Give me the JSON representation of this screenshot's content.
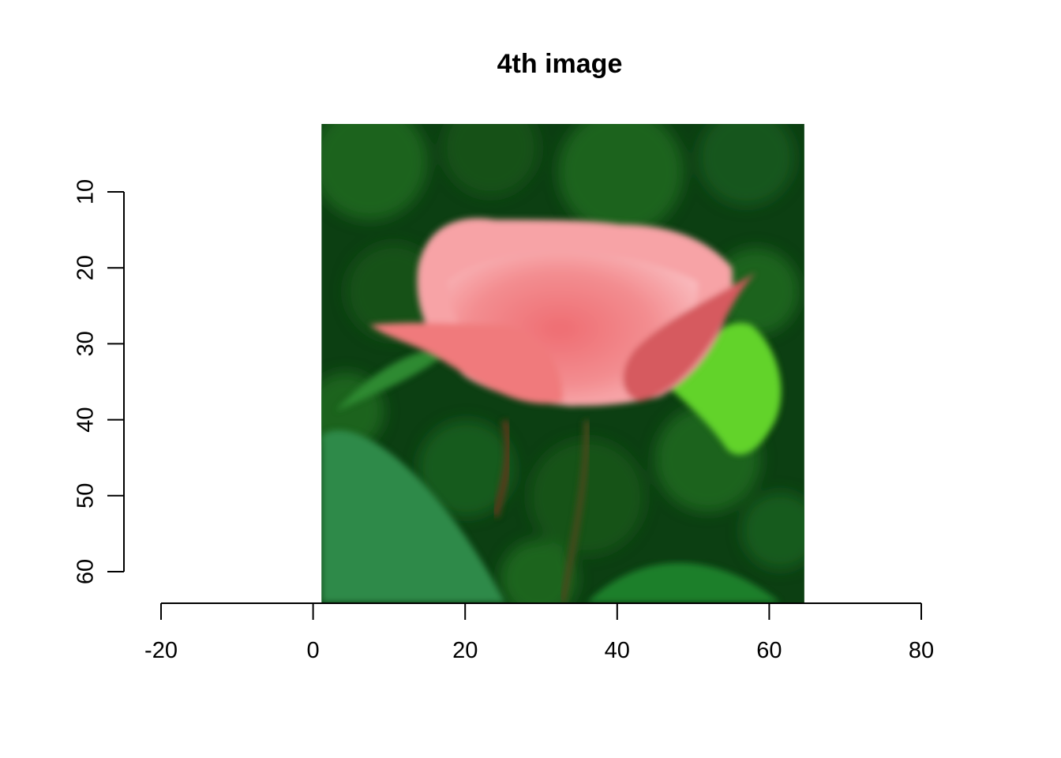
{
  "chart_data": {
    "type": "image",
    "title": "4th image",
    "xlabel": "",
    "ylabel": "",
    "x_axis": {
      "range": [
        -20,
        80
      ],
      "ticks": [
        -20,
        0,
        20,
        40,
        60,
        80
      ]
    },
    "y_axis": {
      "range": [
        10,
        60
      ],
      "ticks": [
        10,
        20,
        30,
        40,
        50,
        60
      ],
      "reversed": true
    },
    "image_extent": {
      "x": [
        1,
        64
      ],
      "y": [
        1,
        64
      ]
    },
    "image_subject": "pink rose bud on green foliage background",
    "colors": {
      "rose_light": "#f7a3a6",
      "rose_mid": "#f07a7c",
      "rose_dark": "#d65a5e",
      "foliage_dark": "#0c3f12",
      "foliage_mid": "#1f6d22",
      "leaf_bright": "#62d32a",
      "leaf_teal": "#2f8a4a",
      "stem": "#5a3a1c"
    }
  }
}
